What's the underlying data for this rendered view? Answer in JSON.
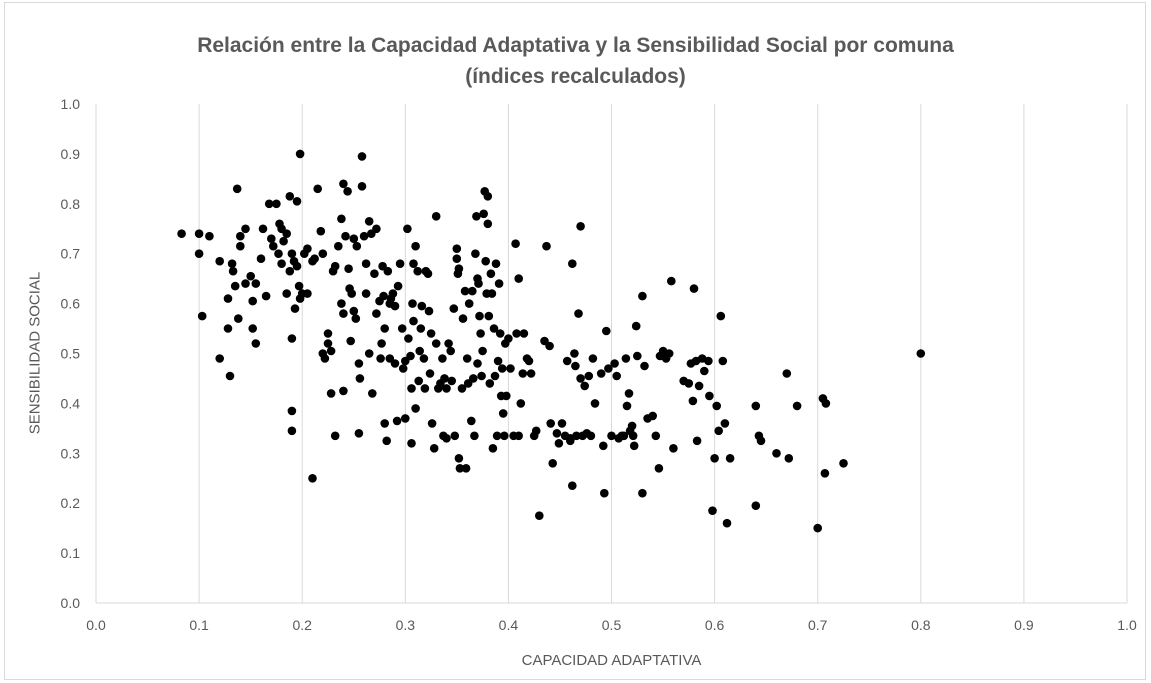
{
  "chart_data": {
    "type": "scatter",
    "title_line1": "Relación entre la Capacidad Adaptativa y la Sensibilidad Social por comuna",
    "title_line2": "(índices recalculados)",
    "xlabel": "CAPACIDAD ADAPTATIVA",
    "ylabel": "SENSIBILIDAD SOCIAL",
    "xlim": [
      0,
      1
    ],
    "ylim": [
      0,
      1
    ],
    "xticks": [
      "0.0",
      "0.1",
      "0.2",
      "0.3",
      "0.4",
      "0.5",
      "0.6",
      "0.7",
      "0.8",
      "0.9",
      "1.0"
    ],
    "yticks": [
      "0.0",
      "0.1",
      "0.2",
      "0.3",
      "0.4",
      "0.5",
      "0.6",
      "0.7",
      "0.8",
      "0.9",
      "1.0"
    ],
    "grid": "vertical",
    "legend": "none",
    "marker_color": "#000000",
    "points": [
      [
        0.083,
        0.74
      ],
      [
        0.1,
        0.74
      ],
      [
        0.11,
        0.735
      ],
      [
        0.1,
        0.7
      ],
      [
        0.103,
        0.575
      ],
      [
        0.12,
        0.685
      ],
      [
        0.12,
        0.49
      ],
      [
        0.128,
        0.61
      ],
      [
        0.128,
        0.55
      ],
      [
        0.13,
        0.455
      ],
      [
        0.132,
        0.68
      ],
      [
        0.133,
        0.665
      ],
      [
        0.135,
        0.635
      ],
      [
        0.138,
        0.57
      ],
      [
        0.137,
        0.83
      ],
      [
        0.14,
        0.735
      ],
      [
        0.14,
        0.715
      ],
      [
        0.145,
        0.75
      ],
      [
        0.145,
        0.64
      ],
      [
        0.15,
        0.655
      ],
      [
        0.152,
        0.605
      ],
      [
        0.152,
        0.55
      ],
      [
        0.155,
        0.52
      ],
      [
        0.155,
        0.64
      ],
      [
        0.16,
        0.69
      ],
      [
        0.162,
        0.75
      ],
      [
        0.165,
        0.615
      ],
      [
        0.168,
        0.8
      ],
      [
        0.17,
        0.73
      ],
      [
        0.172,
        0.715
      ],
      [
        0.175,
        0.8
      ],
      [
        0.177,
        0.7
      ],
      [
        0.178,
        0.76
      ],
      [
        0.18,
        0.68
      ],
      [
        0.18,
        0.75
      ],
      [
        0.182,
        0.725
      ],
      [
        0.185,
        0.74
      ],
      [
        0.185,
        0.62
      ],
      [
        0.188,
        0.815
      ],
      [
        0.188,
        0.665
      ],
      [
        0.19,
        0.7
      ],
      [
        0.19,
        0.53
      ],
      [
        0.192,
        0.685
      ],
      [
        0.193,
        0.59
      ],
      [
        0.195,
        0.805
      ],
      [
        0.195,
        0.675
      ],
      [
        0.197,
        0.635
      ],
      [
        0.198,
        0.9
      ],
      [
        0.198,
        0.61
      ],
      [
        0.2,
        0.62
      ],
      [
        0.19,
        0.385
      ],
      [
        0.19,
        0.345
      ],
      [
        0.202,
        0.7
      ],
      [
        0.205,
        0.62
      ],
      [
        0.205,
        0.71
      ],
      [
        0.21,
        0.685
      ],
      [
        0.21,
        0.25
      ],
      [
        0.212,
        0.69
      ],
      [
        0.215,
        0.83
      ],
      [
        0.218,
        0.745
      ],
      [
        0.22,
        0.7
      ],
      [
        0.22,
        0.5
      ],
      [
        0.222,
        0.49
      ],
      [
        0.225,
        0.54
      ],
      [
        0.225,
        0.52
      ],
      [
        0.228,
        0.505
      ],
      [
        0.228,
        0.42
      ],
      [
        0.23,
        0.665
      ],
      [
        0.232,
        0.675
      ],
      [
        0.232,
        0.335
      ],
      [
        0.235,
        0.715
      ],
      [
        0.238,
        0.77
      ],
      [
        0.238,
        0.6
      ],
      [
        0.24,
        0.58
      ],
      [
        0.24,
        0.425
      ],
      [
        0.24,
        0.84
      ],
      [
        0.242,
        0.735
      ],
      [
        0.244,
        0.825
      ],
      [
        0.245,
        0.67
      ],
      [
        0.246,
        0.63
      ],
      [
        0.247,
        0.525
      ],
      [
        0.248,
        0.62
      ],
      [
        0.25,
        0.73
      ],
      [
        0.25,
        0.585
      ],
      [
        0.252,
        0.57
      ],
      [
        0.253,
        0.715
      ],
      [
        0.255,
        0.48
      ],
      [
        0.256,
        0.45
      ],
      [
        0.255,
        0.34
      ],
      [
        0.258,
        0.895
      ],
      [
        0.258,
        0.835
      ],
      [
        0.26,
        0.735
      ],
      [
        0.262,
        0.68
      ],
      [
        0.262,
        0.62
      ],
      [
        0.265,
        0.5
      ],
      [
        0.265,
        0.765
      ],
      [
        0.267,
        0.74
      ],
      [
        0.268,
        0.42
      ],
      [
        0.27,
        0.66
      ],
      [
        0.272,
        0.58
      ],
      [
        0.272,
        0.75
      ],
      [
        0.275,
        0.605
      ],
      [
        0.276,
        0.49
      ],
      [
        0.277,
        0.52
      ],
      [
        0.278,
        0.675
      ],
      [
        0.279,
        0.615
      ],
      [
        0.28,
        0.36
      ],
      [
        0.28,
        0.55
      ],
      [
        0.282,
        0.325
      ],
      [
        0.283,
        0.665
      ],
      [
        0.285,
        0.6
      ],
      [
        0.285,
        0.49
      ],
      [
        0.286,
        0.61
      ],
      [
        0.288,
        0.62
      ],
      [
        0.29,
        0.595
      ],
      [
        0.29,
        0.48
      ],
      [
        0.292,
        0.365
      ],
      [
        0.293,
        0.635
      ],
      [
        0.295,
        0.68
      ],
      [
        0.297,
        0.55
      ],
      [
        0.298,
        0.47
      ],
      [
        0.3,
        0.485
      ],
      [
        0.3,
        0.37
      ],
      [
        0.302,
        0.75
      ],
      [
        0.303,
        0.53
      ],
      [
        0.305,
        0.495
      ],
      [
        0.306,
        0.43
      ],
      [
        0.306,
        0.32
      ],
      [
        0.307,
        0.6
      ],
      [
        0.308,
        0.68
      ],
      [
        0.308,
        0.565
      ],
      [
        0.31,
        0.715
      ],
      [
        0.31,
        0.39
      ],
      [
        0.312,
        0.665
      ],
      [
        0.313,
        0.445
      ],
      [
        0.314,
        0.505
      ],
      [
        0.315,
        0.55
      ],
      [
        0.316,
        0.595
      ],
      [
        0.318,
        0.49
      ],
      [
        0.319,
        0.43
      ],
      [
        0.32,
        0.665
      ],
      [
        0.322,
        0.66
      ],
      [
        0.323,
        0.585
      ],
      [
        0.324,
        0.46
      ],
      [
        0.325,
        0.54
      ],
      [
        0.326,
        0.36
      ],
      [
        0.328,
        0.31
      ],
      [
        0.33,
        0.775
      ],
      [
        0.33,
        0.52
      ],
      [
        0.332,
        0.43
      ],
      [
        0.334,
        0.44
      ],
      [
        0.336,
        0.49
      ],
      [
        0.337,
        0.335
      ],
      [
        0.338,
        0.45
      ],
      [
        0.34,
        0.43
      ],
      [
        0.34,
        0.33
      ],
      [
        0.342,
        0.52
      ],
      [
        0.344,
        0.505
      ],
      [
        0.345,
        0.445
      ],
      [
        0.347,
        0.59
      ],
      [
        0.348,
        0.335
      ],
      [
        0.35,
        0.71
      ],
      [
        0.35,
        0.69
      ],
      [
        0.351,
        0.66
      ],
      [
        0.352,
        0.67
      ],
      [
        0.352,
        0.29
      ],
      [
        0.353,
        0.27
      ],
      [
        0.355,
        0.43
      ],
      [
        0.356,
        0.57
      ],
      [
        0.358,
        0.625
      ],
      [
        0.359,
        0.27
      ],
      [
        0.36,
        0.49
      ],
      [
        0.361,
        0.44
      ],
      [
        0.362,
        0.6
      ],
      [
        0.364,
        0.365
      ],
      [
        0.365,
        0.625
      ],
      [
        0.366,
        0.45
      ],
      [
        0.367,
        0.335
      ],
      [
        0.368,
        0.7
      ],
      [
        0.369,
        0.775
      ],
      [
        0.37,
        0.65
      ],
      [
        0.37,
        0.48
      ],
      [
        0.371,
        0.64
      ],
      [
        0.372,
        0.575
      ],
      [
        0.373,
        0.54
      ],
      [
        0.374,
        0.455
      ],
      [
        0.375,
        0.505
      ],
      [
        0.376,
        0.78
      ],
      [
        0.377,
        0.825
      ],
      [
        0.378,
        0.685
      ],
      [
        0.379,
        0.62
      ],
      [
        0.38,
        0.76
      ],
      [
        0.38,
        0.815
      ],
      [
        0.381,
        0.575
      ],
      [
        0.382,
        0.44
      ],
      [
        0.383,
        0.66
      ],
      [
        0.384,
        0.62
      ],
      [
        0.385,
        0.31
      ],
      [
        0.386,
        0.55
      ],
      [
        0.387,
        0.455
      ],
      [
        0.388,
        0.68
      ],
      [
        0.389,
        0.335
      ],
      [
        0.39,
        0.485
      ],
      [
        0.391,
        0.64
      ],
      [
        0.392,
        0.54
      ],
      [
        0.393,
        0.415
      ],
      [
        0.394,
        0.47
      ],
      [
        0.395,
        0.38
      ],
      [
        0.396,
        0.335
      ],
      [
        0.397,
        0.52
      ],
      [
        0.398,
        0.415
      ],
      [
        0.4,
        0.53
      ],
      [
        0.402,
        0.47
      ],
      [
        0.405,
        0.335
      ],
      [
        0.407,
        0.72
      ],
      [
        0.408,
        0.54
      ],
      [
        0.41,
        0.65
      ],
      [
        0.41,
        0.335
      ],
      [
        0.412,
        0.4
      ],
      [
        0.414,
        0.46
      ],
      [
        0.415,
        0.54
      ],
      [
        0.418,
        0.49
      ],
      [
        0.42,
        0.485
      ],
      [
        0.422,
        0.46
      ],
      [
        0.425,
        0.335
      ],
      [
        0.427,
        0.345
      ],
      [
        0.43,
        0.175
      ],
      [
        0.435,
        0.525
      ],
      [
        0.437,
        0.715
      ],
      [
        0.44,
        0.515
      ],
      [
        0.441,
        0.36
      ],
      [
        0.443,
        0.28
      ],
      [
        0.447,
        0.34
      ],
      [
        0.449,
        0.32
      ],
      [
        0.452,
        0.36
      ],
      [
        0.455,
        0.335
      ],
      [
        0.457,
        0.485
      ],
      [
        0.46,
        0.33
      ],
      [
        0.46,
        0.325
      ],
      [
        0.462,
        0.235
      ],
      [
        0.462,
        0.68
      ],
      [
        0.464,
        0.5
      ],
      [
        0.465,
        0.475
      ],
      [
        0.466,
        0.335
      ],
      [
        0.468,
        0.58
      ],
      [
        0.47,
        0.755
      ],
      [
        0.47,
        0.45
      ],
      [
        0.472,
        0.335
      ],
      [
        0.474,
        0.435
      ],
      [
        0.476,
        0.34
      ],
      [
        0.478,
        0.455
      ],
      [
        0.48,
        0.335
      ],
      [
        0.482,
        0.49
      ],
      [
        0.484,
        0.4
      ],
      [
        0.49,
        0.46
      ],
      [
        0.492,
        0.315
      ],
      [
        0.493,
        0.22
      ],
      [
        0.495,
        0.545
      ],
      [
        0.497,
        0.47
      ],
      [
        0.5,
        0.335
      ],
      [
        0.503,
        0.48
      ],
      [
        0.505,
        0.455
      ],
      [
        0.507,
        0.33
      ],
      [
        0.51,
        0.335
      ],
      [
        0.512,
        0.335
      ],
      [
        0.514,
        0.49
      ],
      [
        0.515,
        0.395
      ],
      [
        0.517,
        0.42
      ],
      [
        0.518,
        0.345
      ],
      [
        0.52,
        0.355
      ],
      [
        0.521,
        0.335
      ],
      [
        0.522,
        0.315
      ],
      [
        0.524,
        0.555
      ],
      [
        0.525,
        0.495
      ],
      [
        0.53,
        0.615
      ],
      [
        0.53,
        0.22
      ],
      [
        0.532,
        0.475
      ],
      [
        0.535,
        0.37
      ],
      [
        0.54,
        0.375
      ],
      [
        0.543,
        0.335
      ],
      [
        0.546,
        0.27
      ],
      [
        0.547,
        0.495
      ],
      [
        0.55,
        0.505
      ],
      [
        0.553,
        0.49
      ],
      [
        0.556,
        0.5
      ],
      [
        0.558,
        0.645
      ],
      [
        0.56,
        0.31
      ],
      [
        0.57,
        0.445
      ],
      [
        0.575,
        0.44
      ],
      [
        0.577,
        0.48
      ],
      [
        0.579,
        0.405
      ],
      [
        0.58,
        0.63
      ],
      [
        0.582,
        0.485
      ],
      [
        0.583,
        0.325
      ],
      [
        0.585,
        0.435
      ],
      [
        0.588,
        0.49
      ],
      [
        0.59,
        0.465
      ],
      [
        0.594,
        0.485
      ],
      [
        0.595,
        0.415
      ],
      [
        0.598,
        0.185
      ],
      [
        0.6,
        0.29
      ],
      [
        0.602,
        0.395
      ],
      [
        0.604,
        0.345
      ],
      [
        0.606,
        0.575
      ],
      [
        0.608,
        0.485
      ],
      [
        0.61,
        0.36
      ],
      [
        0.612,
        0.16
      ],
      [
        0.615,
        0.29
      ],
      [
        0.64,
        0.195
      ],
      [
        0.64,
        0.395
      ],
      [
        0.643,
        0.335
      ],
      [
        0.645,
        0.325
      ],
      [
        0.66,
        0.3
      ],
      [
        0.67,
        0.46
      ],
      [
        0.672,
        0.29
      ],
      [
        0.68,
        0.395
      ],
      [
        0.7,
        0.15
      ],
      [
        0.705,
        0.41
      ],
      [
        0.707,
        0.26
      ],
      [
        0.708,
        0.4
      ],
      [
        0.725,
        0.28
      ],
      [
        0.8,
        0.5
      ]
    ]
  }
}
